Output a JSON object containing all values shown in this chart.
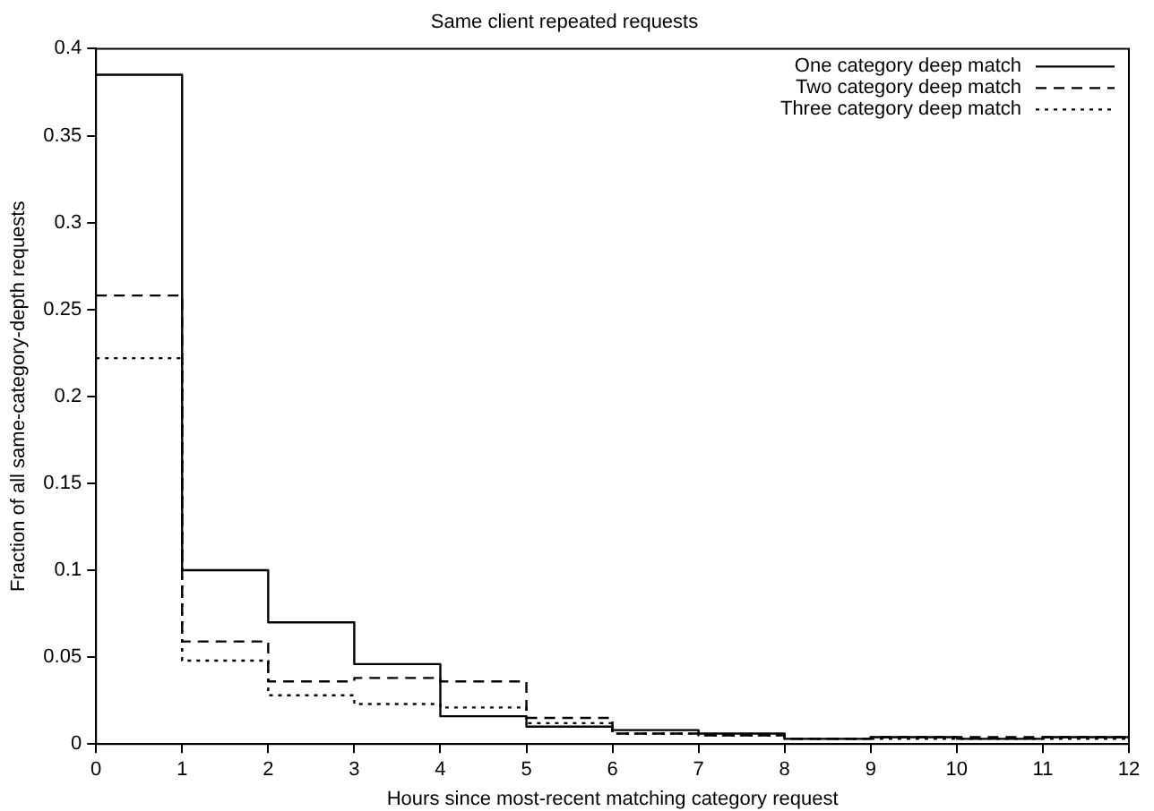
{
  "chart_data": {
    "type": "step",
    "title": "Same client repeated requests",
    "xlabel": "Hours since most-recent matching category request",
    "ylabel": "Fraction of all same-category-depth requests",
    "x": [
      0,
      1,
      2,
      3,
      4,
      5,
      6,
      7,
      8,
      9,
      10,
      11,
      12
    ],
    "series": [
      {
        "name": "One category deep match",
        "color": "#000000",
        "line_style": "solid",
        "values": [
          0.385,
          0.1,
          0.07,
          0.046,
          0.016,
          0.01,
          0.008,
          0.006,
          0.003,
          0.004,
          0.003,
          0.004,
          0.004
        ]
      },
      {
        "name": "Two category deep match",
        "color": "#000000",
        "line_style": "dashed",
        "values": [
          0.258,
          0.059,
          0.036,
          0.038,
          0.036,
          0.015,
          0.006,
          0.005,
          0.003,
          0.004,
          0.004,
          0.004,
          0.004
        ]
      },
      {
        "name": "Three category deep match",
        "color": "#000000",
        "line_style": "dotted",
        "values": [
          0.222,
          0.048,
          0.028,
          0.023,
          0.021,
          0.012,
          0.006,
          0.005,
          0.003,
          0.003,
          0.003,
          0.003,
          0.003
        ]
      }
    ],
    "xlim": [
      0,
      12
    ],
    "xticks": [
      0,
      1,
      2,
      3,
      4,
      5,
      6,
      7,
      8,
      9,
      10,
      11,
      12
    ],
    "ylim": [
      0,
      0.4
    ],
    "yticks": [
      0,
      0.05,
      0.1,
      0.15,
      0.2,
      0.25,
      0.3,
      0.35,
      0.4
    ],
    "grid": false,
    "legend": "top right"
  }
}
